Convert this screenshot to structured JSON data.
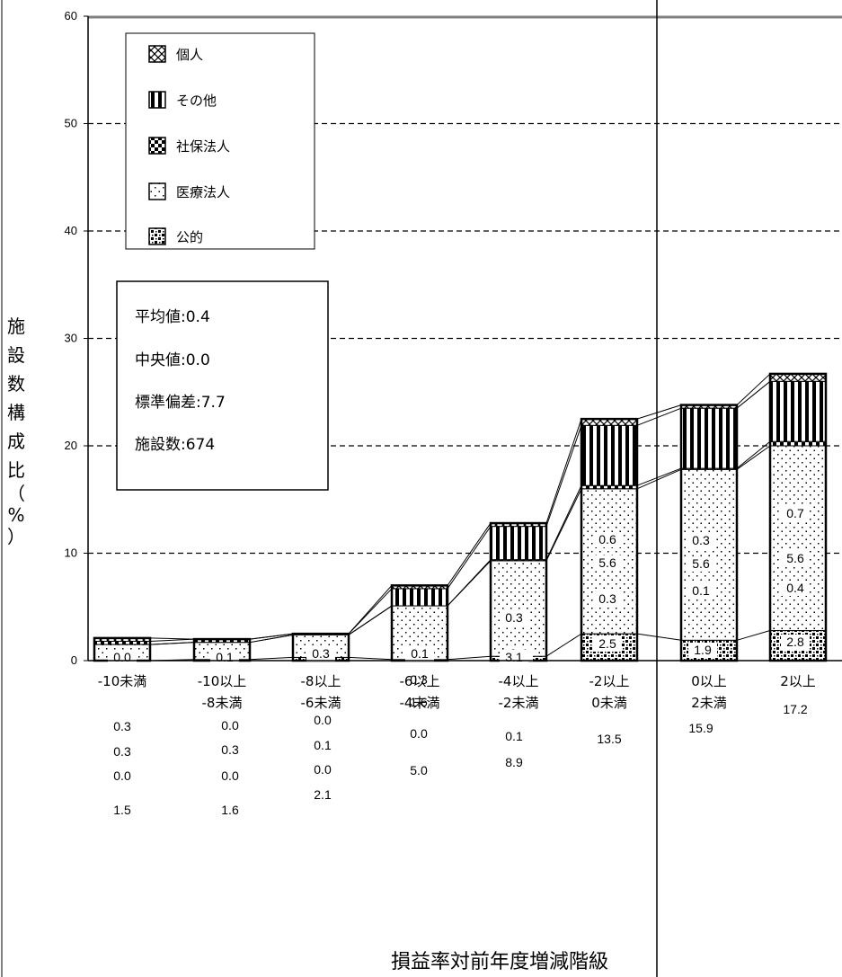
{
  "chart_data": {
    "type": "bar",
    "stacked": true,
    "xlabel": "損益率対前年度増減階級",
    "ylabel": "施設数構成比（%）",
    "ylim": [
      0,
      60
    ],
    "yticks": [
      0,
      10,
      20,
      30,
      40,
      50,
      60
    ],
    "grid": true,
    "legend_position": "top-left",
    "categories": [
      [
        "-10未満",
        ""
      ],
      [
        "-10以上",
        "-8未満"
      ],
      [
        "-8以上",
        "-6未満"
      ],
      [
        "-6以上",
        "-4未満"
      ],
      [
        "-4以上",
        "-2未満"
      ],
      [
        "-2以上",
        "0未満"
      ],
      [
        "0以上",
        "2未満"
      ],
      [
        "2以上",
        ""
      ]
    ],
    "series": [
      {
        "name": "公的",
        "values": [
          0.0,
          0.1,
          0.3,
          0.1,
          0.4,
          2.5,
          1.9,
          2.8
        ]
      },
      {
        "name": "医療法人",
        "values": [
          1.5,
          1.6,
          2.1,
          5.0,
          8.9,
          13.5,
          15.9,
          17.2
        ]
      },
      {
        "name": "社保法人",
        "values": [
          0.0,
          0.0,
          0.0,
          0.0,
          0.1,
          0.3,
          0.1,
          0.4
        ]
      },
      {
        "name": "その他",
        "values": [
          0.3,
          0.3,
          0.1,
          1.6,
          3.1,
          5.6,
          5.6,
          5.6
        ]
      },
      {
        "name": "個人",
        "values": [
          0.3,
          0.0,
          0.0,
          0.3,
          0.3,
          0.6,
          0.3,
          0.7
        ]
      }
    ],
    "legend_order": [
      "個人",
      "その他",
      "社保法人",
      "医療法人",
      "公的"
    ],
    "stats": [
      "平均値:0.4",
      "中央値:0.0",
      "標準偏差:7.7",
      "施設数:674"
    ],
    "colors": {
      "axis": "#000000",
      "grid": "#000000",
      "frame": "#808080",
      "fill": "#ffffff"
    }
  }
}
